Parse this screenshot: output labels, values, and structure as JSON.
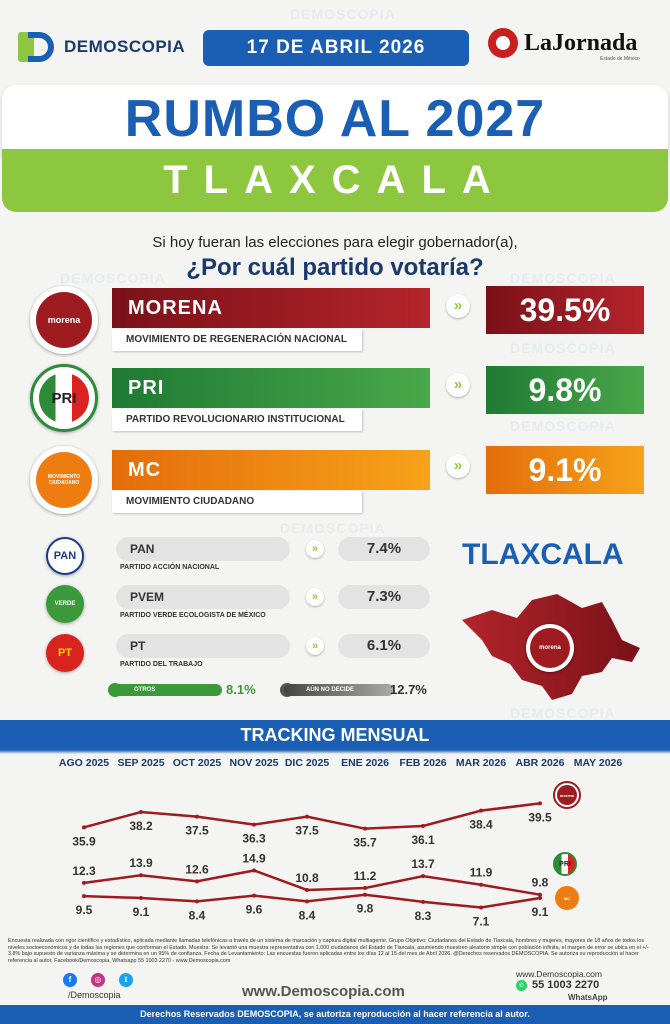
{
  "header": {
    "brand": "DEMOSCOPIA",
    "date": "17 DE ABRIL 2026",
    "partner": "LaJornada",
    "partner_sub": "Estado de México"
  },
  "title": "RUMBO AL 2027",
  "state": "TLAXCALA",
  "question_line1": "Si hoy fueran las elecciones para elegir gobernador(a),",
  "question_line2": "¿Por cuál partido votaría?",
  "colors": {
    "blue": "#1a5fb4",
    "green": "#8dc63f",
    "morena": "#9e1b20",
    "pri": "#2e8b3a",
    "mc": "#ee7d11"
  },
  "main_parties": [
    {
      "abbr": "MORENA",
      "name": "MOVIMIENTO DE REGENERACIÓN NACIONAL",
      "pct": "39.5%",
      "logo_text": "morena"
    },
    {
      "abbr": "PRI",
      "name": "PARTIDO REVOLUCIONARIO INSTITUCIONAL",
      "pct": "9.8%",
      "logo_text": "PRI"
    },
    {
      "abbr": "MC",
      "name": "MOVIMIENTO CIUDADANO",
      "pct": "9.1%",
      "logo_text": "MOVIMIENTO CIUDADANO"
    }
  ],
  "minor_parties": [
    {
      "abbr": "PAN",
      "name": "PARTIDO ACCIÓN NACIONAL",
      "pct": "7.4%",
      "logo_text": "PAN"
    },
    {
      "abbr": "PVEM",
      "name": "PARTIDO VERDE ECOLOGISTA DE MÉXICO",
      "pct": "7.3%",
      "logo_text": "VERDE"
    },
    {
      "abbr": "PT",
      "name": "PARTIDO DEL TRABAJO",
      "pct": "6.1%",
      "logo_text": "PT"
    }
  ],
  "others": {
    "label": "OTROS",
    "pct": "8.1%"
  },
  "undecided": {
    "label": "AÚN NO DECIDE",
    "pct": "12.7%"
  },
  "map_title": "TLAXCALA",
  "map_logo": "morena",
  "tracking_title": "TRACKING MENSUAL",
  "chart_data": {
    "type": "line",
    "title": "TRACKING MENSUAL",
    "categories": [
      "AGO 2025",
      "SEP 2025",
      "OCT 2025",
      "NOV 2025",
      "DIC 2025",
      "ENE 2026",
      "FEB 2026",
      "MAR 2026",
      "ABR 2026",
      "MAY 2026"
    ],
    "series": [
      {
        "name": "morena",
        "color": "#9e1b20",
        "values": [
          35.9,
          38.2,
          37.5,
          36.3,
          37.5,
          35.7,
          36.1,
          38.4,
          39.5,
          null
        ]
      },
      {
        "name": "PRI",
        "color": "#9e1b20",
        "values": [
          12.3,
          13.9,
          12.6,
          14.9,
          10.8,
          11.2,
          13.7,
          11.9,
          9.8,
          null
        ]
      },
      {
        "name": "MC",
        "color": "#9e1b20",
        "values": [
          9.5,
          9.1,
          8.4,
          9.6,
          8.4,
          9.8,
          8.3,
          7.1,
          9.1,
          null
        ]
      }
    ],
    "value_labels": {
      "morena": [
        "35.9",
        "38.2",
        "37.5",
        "36.3",
        "37.5",
        "35.7",
        "36.1",
        "38.4",
        "39.5"
      ],
      "PRI": [
        "12.3",
        "13.9",
        "12.6",
        "14.9",
        "10.8",
        "11.2",
        "13.7",
        "11.9",
        "9.8"
      ],
      "MC": [
        "9.5",
        "9.1",
        "8.4",
        "9.6",
        "8.4",
        "9.8",
        "8.3",
        "7.1",
        "9.1"
      ]
    },
    "grid": false,
    "legend": "right (party logos)"
  },
  "footer": {
    "methodology": "Encuesta realizada con rigor científico y estadístico, aplicada mediante llamadas telefónicas a través de un sistema de marcación y captura digital multiagente. Grupo Objetivo: Ciudadanos del Estado de Tlaxcala, hombres y mujeres, mayores de 18 años de todos los niveles socioeconómicos y de todas las regiones que conforman el Estado. Muestra: Se levantó una muestra representativa con 1,000 ciudadanos del Estado de Tlaxcala, asumiendo muestreo aleatorio simple con población infinita, el margen de error se ubica en el +/- 3.8% bajo supuesto de varianza máxima y se determina en un 95% de confianza. Fecha de Levantamiento: Las encuestas fueron aplicadas entre los días 12 al 15 del mes de Abril 2026. @Derechos reservados DEMOSCOPIA. Se autoriza su reproducción al hacer referencia al autor, Facebook/Demoscopia, Whatsapp 55 1003 2270 - www.Demoscopia.com",
    "handle": "/Demoscopia",
    "website": "www.Demoscopia.com",
    "website_small": "www.Demoscopia.com",
    "phone": "55 1003 2270",
    "whatsapp": "WhatsApp",
    "rights": "Derechos Reservados DEMOSCOPIA, se autoriza reproducción al hacer referencia al autor."
  }
}
